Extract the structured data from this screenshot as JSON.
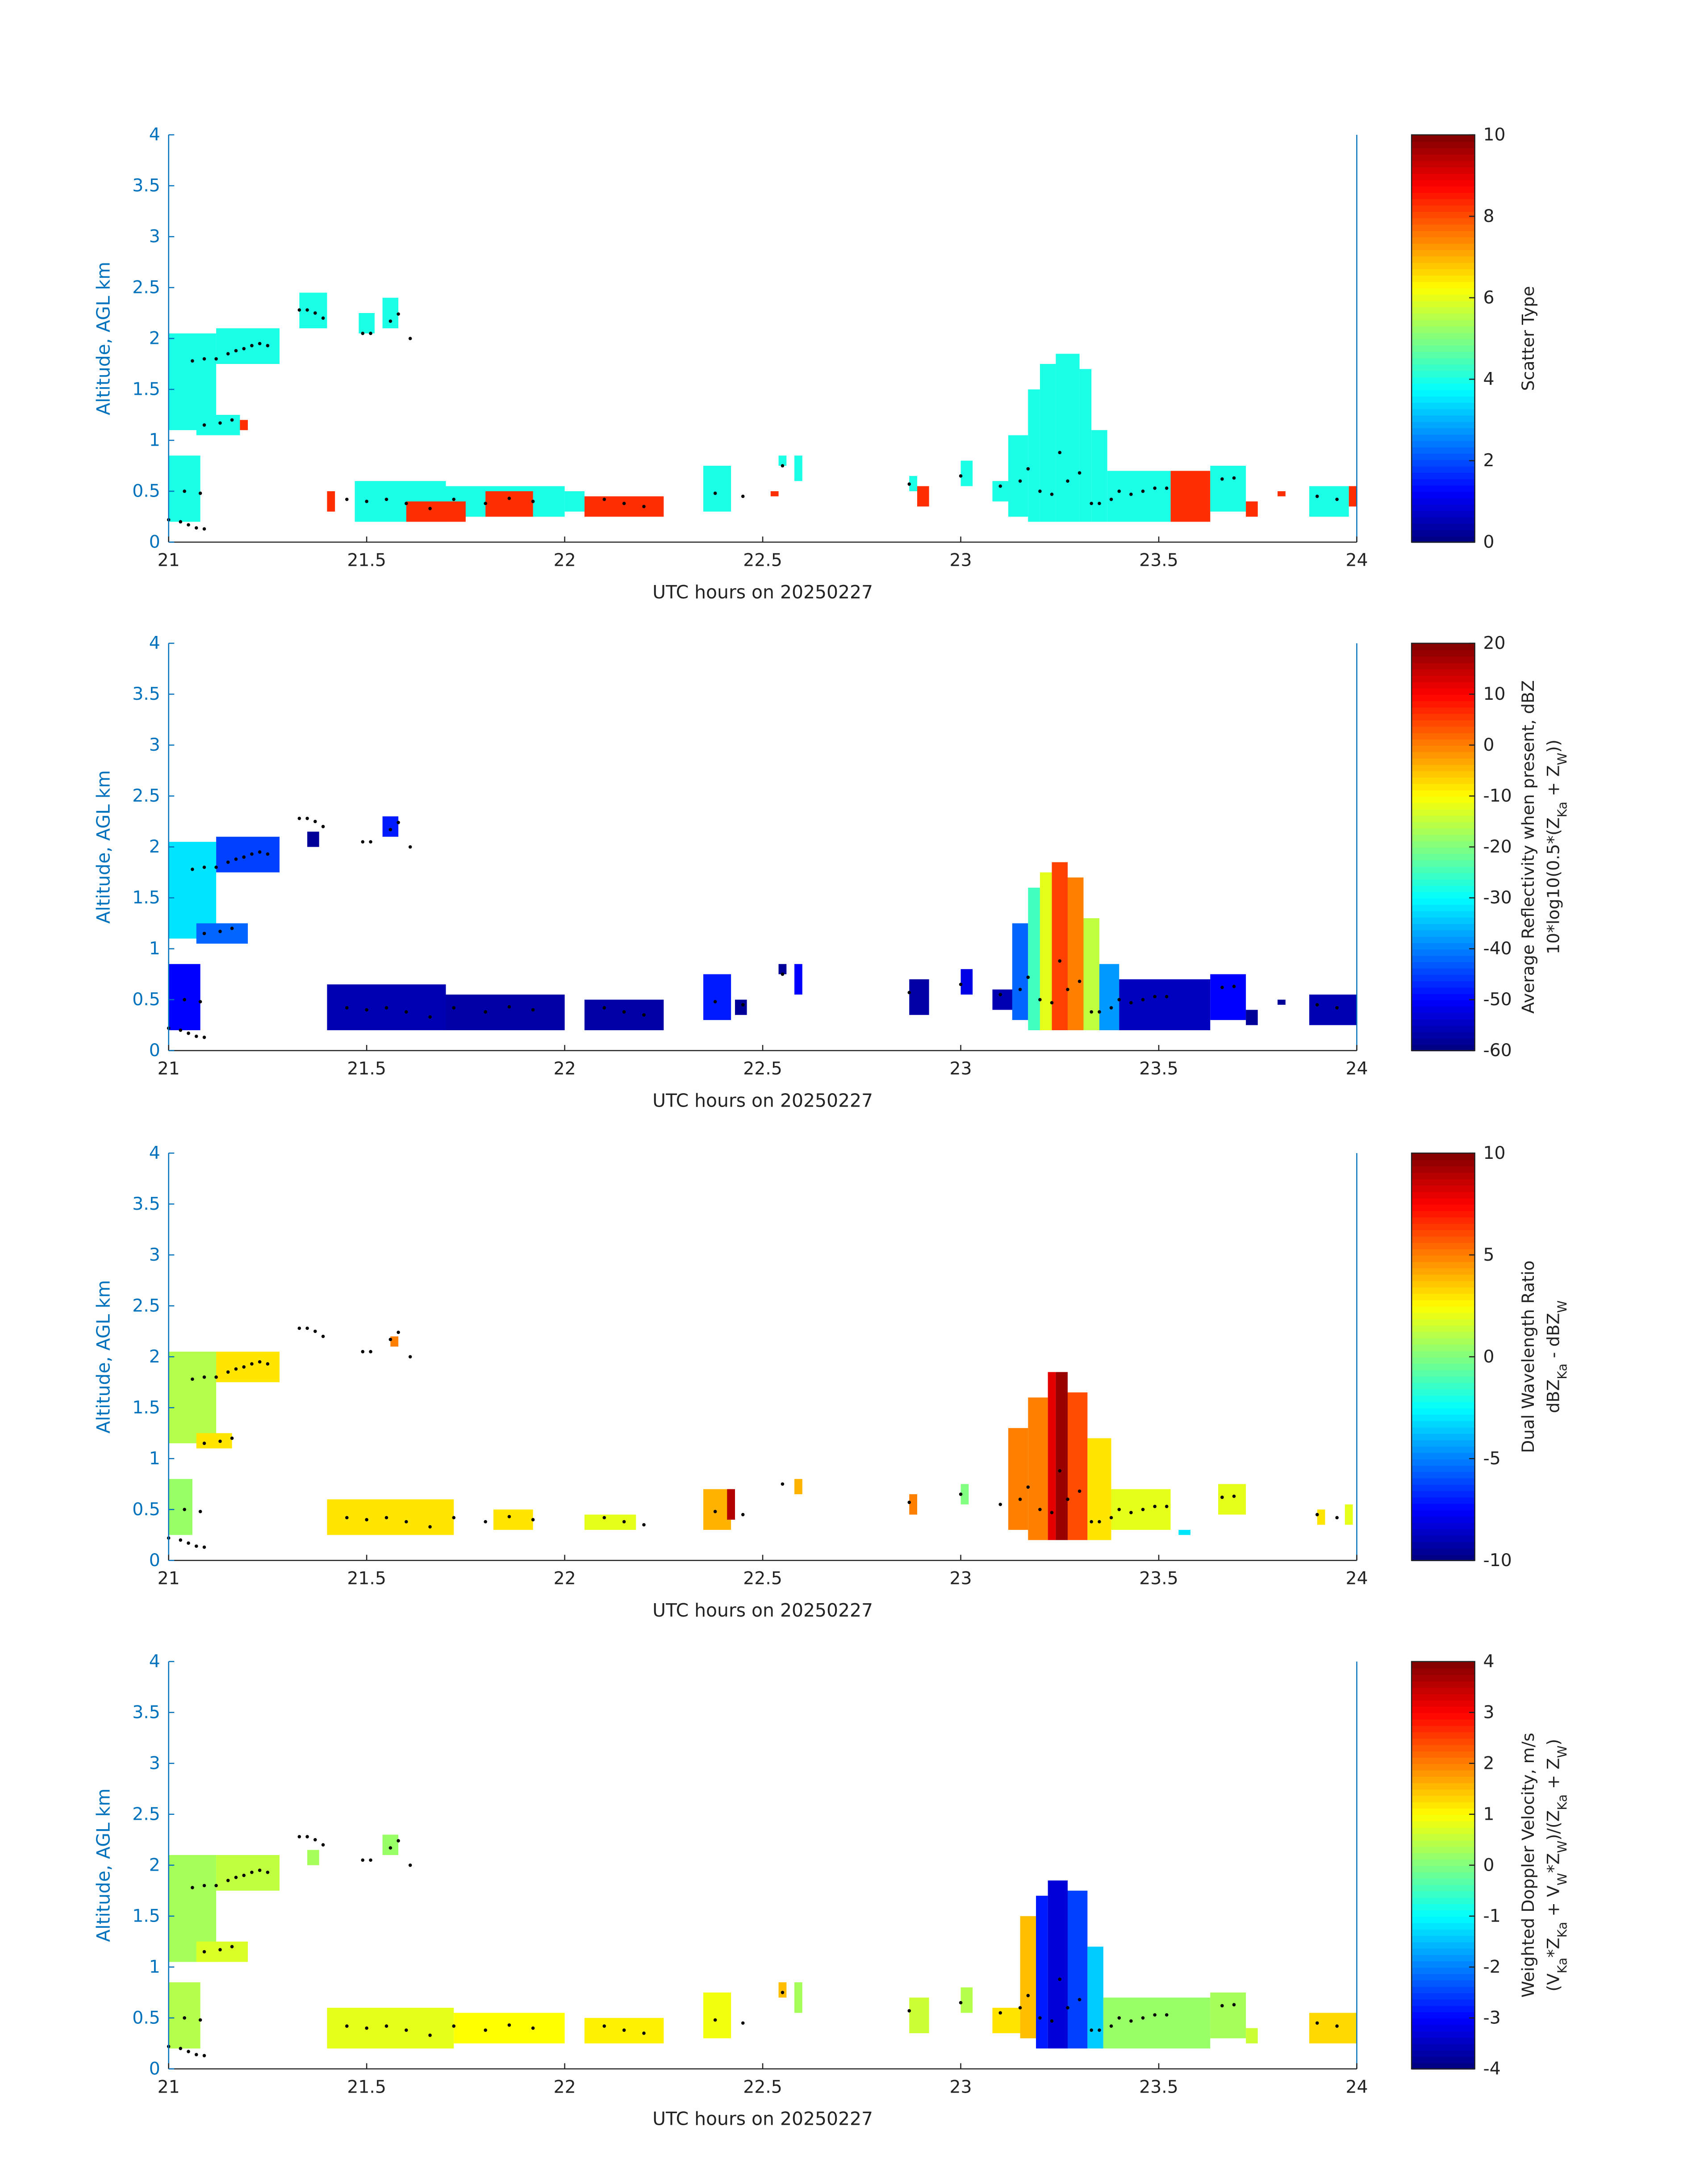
{
  "chart_data": [
    {
      "type": "heatmap",
      "title": "",
      "xlabel": "UTC hours on 20250227",
      "ylabel": "Altitude, AGL km",
      "xlim": [
        21,
        24
      ],
      "ylim": [
        0,
        4
      ],
      "xticks": [
        "21",
        "21.5",
        "22",
        "22.5",
        "23",
        "23.5",
        "24"
      ],
      "yticks": [
        "0",
        "0.5",
        "1",
        "1.5",
        "2",
        "2.5",
        "3",
        "3.5",
        "4"
      ],
      "colorbar": {
        "label": [
          "Scatter Type"
        ],
        "clim": [
          0,
          10
        ],
        "ticks": [
          "0",
          "2",
          "4",
          "6",
          "8",
          "10"
        ]
      },
      "cells_format": "[t_start, t_end, alt_low_km, alt_high_km, value]",
      "cells": [
        [
          21.0,
          21.12,
          1.1,
          2.05,
          4
        ],
        [
          21.12,
          21.28,
          1.75,
          2.1,
          4
        ],
        [
          21.07,
          21.18,
          1.05,
          1.25,
          4
        ],
        [
          21.18,
          21.2,
          1.1,
          1.2,
          8.3
        ],
        [
          21.0,
          21.08,
          0.2,
          0.85,
          4
        ],
        [
          21.33,
          21.4,
          2.1,
          2.45,
          4
        ],
        [
          21.48,
          21.52,
          2.05,
          2.25,
          4
        ],
        [
          21.54,
          21.58,
          2.1,
          2.4,
          4
        ],
        [
          21.47,
          21.7,
          0.2,
          0.6,
          4
        ],
        [
          21.7,
          22.0,
          0.25,
          0.55,
          4
        ],
        [
          21.4,
          21.42,
          0.3,
          0.5,
          8.3
        ],
        [
          21.6,
          21.75,
          0.2,
          0.4,
          8.3
        ],
        [
          21.8,
          21.92,
          0.25,
          0.5,
          8.3
        ],
        [
          22.05,
          22.25,
          0.25,
          0.45,
          8.3
        ],
        [
          22.0,
          22.05,
          0.3,
          0.5,
          4
        ],
        [
          22.35,
          22.42,
          0.3,
          0.75,
          4
        ],
        [
          22.52,
          22.54,
          0.45,
          0.5,
          8.3
        ],
        [
          22.54,
          22.56,
          0.75,
          0.85,
          4
        ],
        [
          22.58,
          22.6,
          0.6,
          0.85,
          4
        ],
        [
          22.87,
          22.89,
          0.5,
          0.65,
          4
        ],
        [
          22.89,
          22.92,
          0.35,
          0.55,
          8.3
        ],
        [
          23.0,
          23.03,
          0.55,
          0.8,
          4
        ],
        [
          23.08,
          23.12,
          0.4,
          0.6,
          4
        ],
        [
          23.12,
          23.17,
          0.25,
          1.05,
          4
        ],
        [
          23.17,
          23.2,
          0.2,
          1.5,
          4
        ],
        [
          23.2,
          23.24,
          0.2,
          1.75,
          4
        ],
        [
          23.24,
          23.3,
          0.2,
          1.85,
          4
        ],
        [
          23.3,
          23.33,
          0.2,
          1.7,
          4
        ],
        [
          23.33,
          23.37,
          0.2,
          1.1,
          4
        ],
        [
          23.37,
          23.53,
          0.2,
          0.7,
          4
        ],
        [
          23.53,
          23.63,
          0.2,
          0.7,
          8.3
        ],
        [
          23.63,
          23.72,
          0.3,
          0.75,
          4
        ],
        [
          23.72,
          23.75,
          0.25,
          0.4,
          8.3
        ],
        [
          23.8,
          23.82,
          0.45,
          0.5,
          8.3
        ],
        [
          23.88,
          23.98,
          0.25,
          0.55,
          4
        ],
        [
          23.98,
          24.0,
          0.35,
          0.55,
          8.3
        ]
      ]
    },
    {
      "type": "heatmap",
      "xlabel": "UTC hours on 20250227",
      "ylabel": "Altitude, AGL km",
      "xlim": [
        21,
        24
      ],
      "ylim": [
        0,
        4
      ],
      "xticks": [
        "21",
        "21.5",
        "22",
        "22.5",
        "23",
        "23.5",
        "24"
      ],
      "yticks": [
        "0",
        "0.5",
        "1",
        "1.5",
        "2",
        "2.5",
        "3",
        "3.5",
        "4"
      ],
      "colorbar": {
        "label": [
          "Average Reflectivity when present, dBZ",
          "10*log10(0.5*(Z_Ka + Z_W))"
        ],
        "clim": [
          -60,
          20
        ],
        "ticks": [
          "-60",
          "-50",
          "-40",
          "-30",
          "-20",
          "-10",
          "0",
          "10",
          "20"
        ]
      },
      "cells_format": "[t_start, t_end, alt_low_km, alt_high_km, value]",
      "cells": [
        [
          21.0,
          21.12,
          1.1,
          2.05,
          -32
        ],
        [
          21.12,
          21.28,
          1.75,
          2.1,
          -45
        ],
        [
          21.07,
          21.2,
          1.05,
          1.25,
          -42
        ],
        [
          21.0,
          21.08,
          0.2,
          0.85,
          -50
        ],
        [
          21.35,
          21.38,
          2.0,
          2.15,
          -58
        ],
        [
          21.54,
          21.58,
          2.1,
          2.3,
          -48
        ],
        [
          21.4,
          21.7,
          0.2,
          0.65,
          -56
        ],
        [
          21.7,
          22.0,
          0.2,
          0.55,
          -57
        ],
        [
          22.05,
          22.25,
          0.2,
          0.5,
          -57
        ],
        [
          22.35,
          22.42,
          0.3,
          0.75,
          -48
        ],
        [
          22.43,
          22.46,
          0.35,
          0.5,
          -58
        ],
        [
          22.54,
          22.56,
          0.75,
          0.85,
          -58
        ],
        [
          22.58,
          22.6,
          0.55,
          0.85,
          -50
        ],
        [
          22.87,
          22.92,
          0.35,
          0.7,
          -57
        ],
        [
          23.0,
          23.03,
          0.55,
          0.8,
          -52
        ],
        [
          23.08,
          23.15,
          0.4,
          0.6,
          -56
        ],
        [
          23.13,
          23.17,
          0.3,
          1.25,
          -42
        ],
        [
          23.17,
          23.2,
          0.2,
          1.6,
          -25
        ],
        [
          23.2,
          23.23,
          0.2,
          1.75,
          -12
        ],
        [
          23.23,
          23.27,
          0.2,
          1.85,
          5
        ],
        [
          23.27,
          23.31,
          0.2,
          1.7,
          0
        ],
        [
          23.31,
          23.35,
          0.2,
          1.3,
          -15
        ],
        [
          23.35,
          23.4,
          0.2,
          0.85,
          -38
        ],
        [
          23.4,
          23.63,
          0.2,
          0.7,
          -55
        ],
        [
          23.63,
          23.72,
          0.3,
          0.75,
          -50
        ],
        [
          23.72,
          23.75,
          0.25,
          0.4,
          -58
        ],
        [
          23.8,
          23.82,
          0.45,
          0.5,
          -58
        ],
        [
          23.88,
          24.0,
          0.25,
          0.55,
          -56
        ]
      ]
    },
    {
      "type": "heatmap",
      "xlabel": "UTC hours on 20250227",
      "ylabel": "Altitude, AGL km",
      "xlim": [
        21,
        24
      ],
      "ylim": [
        0,
        4
      ],
      "xticks": [
        "21",
        "21.5",
        "22",
        "22.5",
        "23",
        "23.5",
        "24"
      ],
      "yticks": [
        "0",
        "0.5",
        "1",
        "1.5",
        "2",
        "2.5",
        "3",
        "3.5",
        "4"
      ],
      "colorbar": {
        "label": [
          "Dual Wavelength Ratio",
          "dBZ_Ka - dBZ_W"
        ],
        "clim": [
          -10,
          10
        ],
        "ticks": [
          "-10",
          "-5",
          "0",
          "5",
          "10"
        ]
      },
      "cells_format": "[t_start, t_end, alt_low_km, alt_high_km, value]",
      "cells": [
        [
          21.0,
          21.12,
          1.15,
          2.05,
          1
        ],
        [
          21.12,
          21.28,
          1.75,
          2.05,
          3
        ],
        [
          21.07,
          21.16,
          1.1,
          1.25,
          3
        ],
        [
          21.0,
          21.06,
          0.25,
          0.8,
          0.5
        ],
        [
          21.56,
          21.58,
          2.1,
          2.2,
          5
        ],
        [
          21.4,
          21.72,
          0.25,
          0.6,
          3
        ],
        [
          21.82,
          21.92,
          0.3,
          0.5,
          3
        ],
        [
          22.05,
          22.18,
          0.3,
          0.45,
          2
        ],
        [
          22.35,
          22.42,
          0.3,
          0.7,
          4
        ],
        [
          22.41,
          22.43,
          0.4,
          0.7,
          9
        ],
        [
          22.58,
          22.6,
          0.65,
          0.8,
          4
        ],
        [
          22.87,
          22.89,
          0.45,
          0.65,
          5
        ],
        [
          23.0,
          23.02,
          0.55,
          0.75,
          0
        ],
        [
          23.12,
          23.17,
          0.3,
          1.3,
          5
        ],
        [
          23.17,
          23.22,
          0.2,
          1.6,
          5
        ],
        [
          23.22,
          23.24,
          0.2,
          1.85,
          8
        ],
        [
          23.24,
          23.27,
          0.2,
          1.85,
          9.5
        ],
        [
          23.27,
          23.32,
          0.2,
          1.65,
          6
        ],
        [
          23.32,
          23.38,
          0.2,
          1.2,
          3
        ],
        [
          23.38,
          23.53,
          0.3,
          0.7,
          2
        ],
        [
          23.55,
          23.58,
          0.25,
          0.3,
          -3
        ],
        [
          23.65,
          23.72,
          0.45,
          0.75,
          2
        ],
        [
          23.9,
          23.92,
          0.35,
          0.5,
          3
        ],
        [
          23.97,
          23.99,
          0.35,
          0.55,
          2
        ]
      ]
    },
    {
      "type": "heatmap",
      "xlabel": "UTC hours on 20250227",
      "ylabel": "Altitude, AGL km",
      "xlim": [
        21,
        24
      ],
      "ylim": [
        0,
        4
      ],
      "xticks": [
        "21",
        "21.5",
        "22",
        "22.5",
        "23",
        "23.5",
        "24"
      ],
      "yticks": [
        "0",
        "0.5",
        "1",
        "1.5",
        "2",
        "2.5",
        "3",
        "3.5",
        "4"
      ],
      "colorbar": {
        "label": [
          "Weighted Doppler Velocity, m/s",
          "(V_Ka*Z_Ka + V_W*Z_W)/(Z_Ka + Z_W)"
        ],
        "clim": [
          -4,
          4
        ],
        "ticks": [
          "-4",
          "-3",
          "-2",
          "-1",
          "0",
          "1",
          "2",
          "3",
          "4"
        ]
      },
      "cells_format": "[t_start, t_end, alt_low_km, alt_high_km, value]",
      "cells": [
        [
          21.0,
          21.12,
          1.05,
          2.1,
          0.3
        ],
        [
          21.12,
          21.28,
          1.75,
          2.1,
          0.5
        ],
        [
          21.07,
          21.2,
          1.05,
          1.25,
          0.7
        ],
        [
          21.0,
          21.08,
          0.2,
          0.85,
          0.4
        ],
        [
          21.35,
          21.38,
          2.0,
          2.15,
          0.3
        ],
        [
          21.54,
          21.58,
          2.1,
          2.3,
          0.2
        ],
        [
          21.4,
          21.72,
          0.2,
          0.6,
          0.8
        ],
        [
          21.72,
          22.0,
          0.25,
          0.55,
          1.0
        ],
        [
          22.05,
          22.25,
          0.25,
          0.5,
          1.1
        ],
        [
          22.35,
          22.42,
          0.3,
          0.75,
          0.9
        ],
        [
          22.54,
          22.56,
          0.7,
          0.85,
          1.5
        ],
        [
          22.58,
          22.6,
          0.55,
          0.85,
          0.3
        ],
        [
          22.87,
          22.92,
          0.35,
          0.7,
          0.6
        ],
        [
          23.0,
          23.03,
          0.55,
          0.8,
          0.4
        ],
        [
          23.08,
          23.15,
          0.35,
          0.6,
          1.2
        ],
        [
          23.15,
          23.19,
          0.3,
          1.5,
          1.5
        ],
        [
          23.19,
          23.22,
          0.2,
          1.7,
          -2.8
        ],
        [
          23.22,
          23.27,
          0.2,
          1.85,
          -3.3
        ],
        [
          23.27,
          23.32,
          0.2,
          1.75,
          -2.5
        ],
        [
          23.32,
          23.36,
          0.2,
          1.2,
          -1.4
        ],
        [
          23.36,
          23.63,
          0.2,
          0.7,
          0.2
        ],
        [
          23.63,
          23.72,
          0.3,
          0.75,
          0.3
        ],
        [
          23.72,
          23.75,
          0.25,
          0.4,
          0.6
        ],
        [
          23.88,
          24.0,
          0.25,
          0.55,
          1.3
        ]
      ]
    }
  ],
  "marker_series": {
    "description_axis": "black dot markers drawn in every panel, [UTC hour, altitude km]",
    "points": [
      [
        21.0,
        0.22
      ],
      [
        21.03,
        0.2
      ],
      [
        21.05,
        0.17
      ],
      [
        21.07,
        0.14
      ],
      [
        21.09,
        0.13
      ],
      [
        21.06,
        1.78
      ],
      [
        21.09,
        1.8
      ],
      [
        21.12,
        1.8
      ],
      [
        21.15,
        1.85
      ],
      [
        21.17,
        1.88
      ],
      [
        21.19,
        1.9
      ],
      [
        21.21,
        1.93
      ],
      [
        21.23,
        1.95
      ],
      [
        21.25,
        1.93
      ],
      [
        21.09,
        1.15
      ],
      [
        21.13,
        1.17
      ],
      [
        21.16,
        1.2
      ],
      [
        21.04,
        0.5
      ],
      [
        21.08,
        0.48
      ],
      [
        21.33,
        2.28
      ],
      [
        21.35,
        2.28
      ],
      [
        21.37,
        2.25
      ],
      [
        21.39,
        2.2
      ],
      [
        21.49,
        2.05
      ],
      [
        21.51,
        2.05
      ],
      [
        21.56,
        2.17
      ],
      [
        21.58,
        2.24
      ],
      [
        21.61,
        2.0
      ],
      [
        21.45,
        0.42
      ],
      [
        21.5,
        0.4
      ],
      [
        21.55,
        0.42
      ],
      [
        21.6,
        0.38
      ],
      [
        21.66,
        0.33
      ],
      [
        21.72,
        0.42
      ],
      [
        21.8,
        0.38
      ],
      [
        21.86,
        0.43
      ],
      [
        21.92,
        0.4
      ],
      [
        22.1,
        0.42
      ],
      [
        22.15,
        0.38
      ],
      [
        22.2,
        0.35
      ],
      [
        22.38,
        0.48
      ],
      [
        22.45,
        0.45
      ],
      [
        22.55,
        0.75
      ],
      [
        22.87,
        0.57
      ],
      [
        23.0,
        0.65
      ],
      [
        23.1,
        0.55
      ],
      [
        23.15,
        0.6
      ],
      [
        23.17,
        0.72
      ],
      [
        23.2,
        0.5
      ],
      [
        23.23,
        0.47
      ],
      [
        23.25,
        0.88
      ],
      [
        23.27,
        0.6
      ],
      [
        23.3,
        0.68
      ],
      [
        23.33,
        0.38
      ],
      [
        23.35,
        0.38
      ],
      [
        23.38,
        0.42
      ],
      [
        23.4,
        0.5
      ],
      [
        23.43,
        0.47
      ],
      [
        23.46,
        0.5
      ],
      [
        23.49,
        0.53
      ],
      [
        23.52,
        0.53
      ],
      [
        23.66,
        0.62
      ],
      [
        23.69,
        0.63
      ],
      [
        23.9,
        0.45
      ],
      [
        23.95,
        0.42
      ]
    ]
  }
}
